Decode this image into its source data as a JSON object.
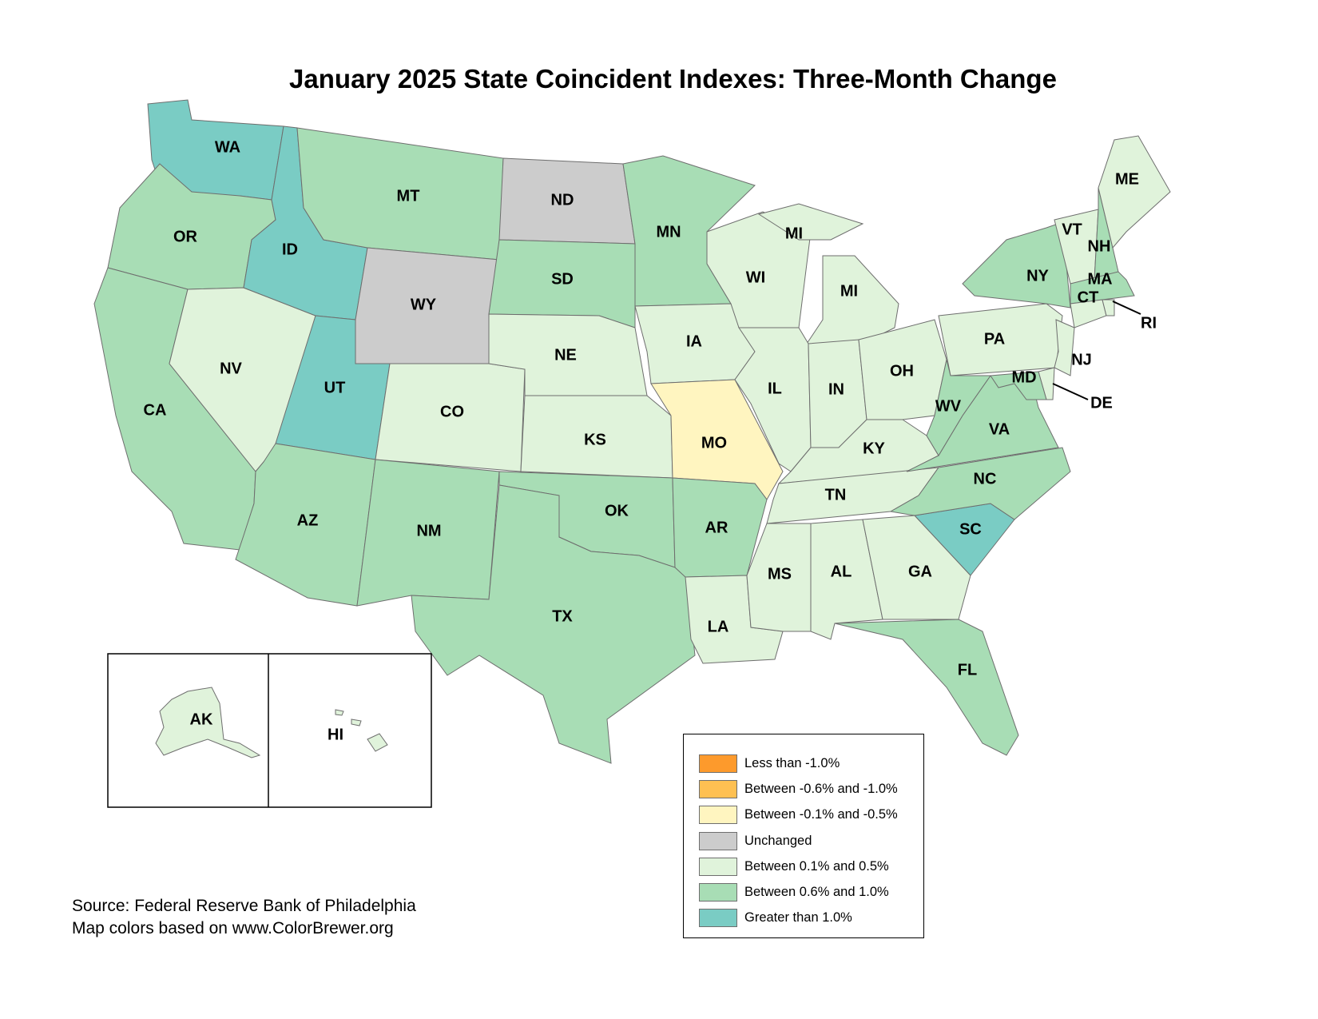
{
  "title": "January 2025 State Coincident Indexes: Three-Month Change",
  "legend": [
    {
      "label": "Less than -1.0%",
      "color": "#FD9A2C",
      "key": "lt_m1"
    },
    {
      "label": "Between -0.6% and -1.0%",
      "color": "#FEC052",
      "key": "m06_m1"
    },
    {
      "label": "Between -0.1% and -0.5%",
      "color": "#FFF5C0",
      "key": "m01_m05"
    },
    {
      "label": "Unchanged",
      "color": "#CCCCCC",
      "key": "zero"
    },
    {
      "label": "Between 0.1% and 0.5%",
      "color": "#E0F3DB",
      "key": "p01_p05"
    },
    {
      "label": "Between 0.6% and 1.0%",
      "color": "#A8DDB5",
      "key": "p06_p1"
    },
    {
      "label": "Greater than 1.0%",
      "color": "#7ACCC4",
      "key": "gt_p1"
    }
  ],
  "states": [
    {
      "abbr": "WA",
      "category": "gt_p1"
    },
    {
      "abbr": "OR",
      "category": "p06_p1"
    },
    {
      "abbr": "CA",
      "category": "p06_p1"
    },
    {
      "abbr": "NV",
      "category": "p01_p05"
    },
    {
      "abbr": "ID",
      "category": "gt_p1"
    },
    {
      "abbr": "MT",
      "category": "p06_p1"
    },
    {
      "abbr": "WY",
      "category": "zero"
    },
    {
      "abbr": "UT",
      "category": "gt_p1"
    },
    {
      "abbr": "CO",
      "category": "p01_p05"
    },
    {
      "abbr": "AZ",
      "category": "p06_p1"
    },
    {
      "abbr": "NM",
      "category": "p06_p1"
    },
    {
      "abbr": "ND",
      "category": "zero"
    },
    {
      "abbr": "SD",
      "category": "p06_p1"
    },
    {
      "abbr": "NE",
      "category": "p01_p05"
    },
    {
      "abbr": "KS",
      "category": "p01_p05"
    },
    {
      "abbr": "OK",
      "category": "p06_p1"
    },
    {
      "abbr": "TX",
      "category": "p06_p1"
    },
    {
      "abbr": "MN",
      "category": "p06_p1"
    },
    {
      "abbr": "IA",
      "category": "p01_p05"
    },
    {
      "abbr": "MO",
      "category": "m01_m05"
    },
    {
      "abbr": "AR",
      "category": "p06_p1"
    },
    {
      "abbr": "LA",
      "category": "p01_p05"
    },
    {
      "abbr": "WI",
      "category": "p01_p05"
    },
    {
      "abbr": "MI",
      "category": "p01_p05"
    },
    {
      "abbr": "IL",
      "category": "p01_p05"
    },
    {
      "abbr": "IN",
      "category": "p01_p05"
    },
    {
      "abbr": "OH",
      "category": "p01_p05"
    },
    {
      "abbr": "KY",
      "category": "p01_p05"
    },
    {
      "abbr": "TN",
      "category": "p01_p05"
    },
    {
      "abbr": "MS",
      "category": "p01_p05"
    },
    {
      "abbr": "AL",
      "category": "p01_p05"
    },
    {
      "abbr": "GA",
      "category": "p01_p05"
    },
    {
      "abbr": "FL",
      "category": "p06_p1"
    },
    {
      "abbr": "SC",
      "category": "gt_p1"
    },
    {
      "abbr": "NC",
      "category": "p06_p1"
    },
    {
      "abbr": "VA",
      "category": "p06_p1"
    },
    {
      "abbr": "WV",
      "category": "p06_p1"
    },
    {
      "abbr": "PA",
      "category": "p01_p05"
    },
    {
      "abbr": "NY",
      "category": "p06_p1"
    },
    {
      "abbr": "VT",
      "category": "p01_p05"
    },
    {
      "abbr": "NH",
      "category": "p06_p1"
    },
    {
      "abbr": "ME",
      "category": "p01_p05"
    },
    {
      "abbr": "MA",
      "category": "p06_p1"
    },
    {
      "abbr": "CT",
      "category": "p01_p05"
    },
    {
      "abbr": "RI",
      "category": "p01_p05"
    },
    {
      "abbr": "NJ",
      "category": "p01_p05"
    },
    {
      "abbr": "DE",
      "category": "p01_p05"
    },
    {
      "abbr": "MD",
      "category": "p06_p1"
    },
    {
      "abbr": "AK",
      "category": "p01_p05"
    },
    {
      "abbr": "HI",
      "category": "p01_p05"
    }
  ],
  "source": {
    "line1": "Source: Federal Reserve Bank of Philadelphia",
    "line2": "Map colors based on www.ColorBrewer.org"
  }
}
